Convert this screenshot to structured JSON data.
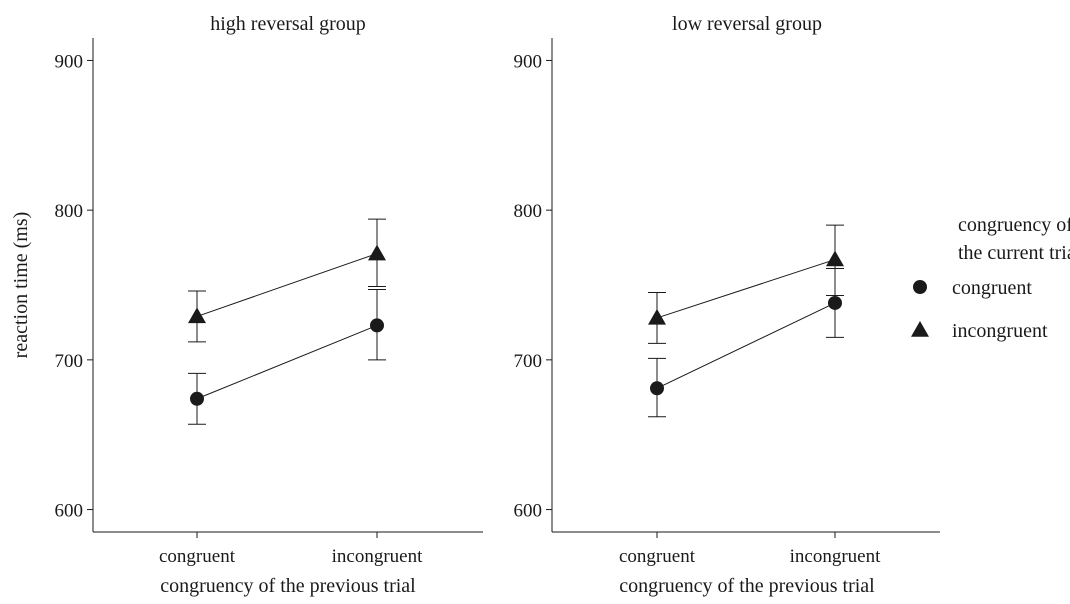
{
  "chart_data": {
    "type": "line",
    "ylabel": "reaction time (ms)",
    "ylim": [
      585,
      915
    ],
    "yticks": [
      600,
      700,
      800,
      900
    ],
    "legend": {
      "title_line1": "congruency of",
      "title_line2": "the current trial",
      "placement": "right",
      "entries": [
        {
          "name": "congruent",
          "marker": "circle"
        },
        {
          "name": "incongruent",
          "marker": "triangle"
        }
      ]
    },
    "panels": [
      {
        "title": "high reversal group",
        "xlabel": "congruency of the previous trial",
        "categories": [
          "congruent",
          "incongruent"
        ],
        "series": [
          {
            "name": "congruent",
            "marker": "circle",
            "values": [
              674,
              723
            ],
            "error_low": [
              657,
              700
            ],
            "error_high": [
              691,
              747
            ]
          },
          {
            "name": "incongruent",
            "marker": "triangle",
            "values": [
              729,
              771
            ],
            "error_low": [
              712,
              749
            ],
            "error_high": [
              746,
              794
            ]
          }
        ]
      },
      {
        "title": "low reversal group",
        "xlabel": "congruency of the previous trial",
        "categories": [
          "congruent",
          "incongruent"
        ],
        "series": [
          {
            "name": "congruent",
            "marker": "circle",
            "values": [
              681,
              738
            ],
            "error_low": [
              662,
              715
            ],
            "error_high": [
              701,
              761
            ]
          },
          {
            "name": "incongruent",
            "marker": "triangle",
            "values": [
              728,
              767
            ],
            "error_low": [
              711,
              743
            ],
            "error_high": [
              745,
              790
            ]
          }
        ]
      }
    ]
  }
}
